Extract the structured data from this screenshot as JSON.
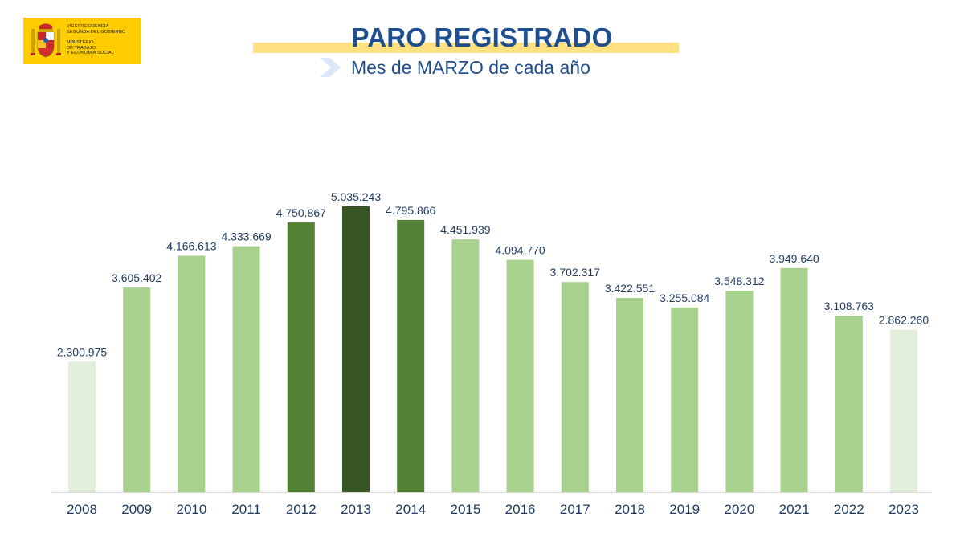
{
  "header": {
    "title": "PARO REGISTRADO",
    "subtitle": "Mes de MARZO de cada año"
  },
  "logo": {
    "line1": "VICEPRESIDENCIA",
    "line2": "SEGUNDA DEL GOBIERNO",
    "line3": "MINISTERIO",
    "line4": "DE TRABAJO",
    "line5": "Y ECONOMÍA SOCIAL"
  },
  "colors": {
    "title": "#1f4f8f",
    "label": "#1f3a5f",
    "yellow": "#ffcc00",
    "highlight_bar": "#ffe082",
    "bar_palest": "#e2efda",
    "bar_light": "#a9d18e",
    "bar_medium": "#548235",
    "bar_dark": "#375623",
    "axis": "#d9d9d9"
  },
  "chart_data": {
    "type": "bar",
    "categories": [
      "2008",
      "2009",
      "2010",
      "2011",
      "2012",
      "2013",
      "2014",
      "2015",
      "2016",
      "2017",
      "2018",
      "2019",
      "2020",
      "2021",
      "2022",
      "2023"
    ],
    "values": [
      2300975,
      3605402,
      4166613,
      4333669,
      4750867,
      5035243,
      4795866,
      4451939,
      4094770,
      3702317,
      3422551,
      3255084,
      3548312,
      3949640,
      3108763,
      2862260
    ],
    "value_labels": [
      "2.300.975",
      "3.605.402",
      "4.166.613",
      "4.333.669",
      "4.750.867",
      "5.035.243",
      "4.795.866",
      "4.451.939",
      "4.094.770",
      "3.702.317",
      "3.422.551",
      "3.255.084",
      "3.548.312",
      "3.949.640",
      "3.108.763",
      "2.862.260"
    ],
    "bar_color_keys": [
      "bar_palest",
      "bar_light",
      "bar_light",
      "bar_light",
      "bar_medium",
      "bar_dark",
      "bar_medium",
      "bar_light",
      "bar_light",
      "bar_light",
      "bar_light",
      "bar_light",
      "bar_light",
      "bar_light",
      "bar_light",
      "bar_palest"
    ],
    "ylim": [
      0,
      7000000
    ],
    "grid": false,
    "legend": "none",
    "title": "",
    "xlabel": "",
    "ylabel": ""
  }
}
